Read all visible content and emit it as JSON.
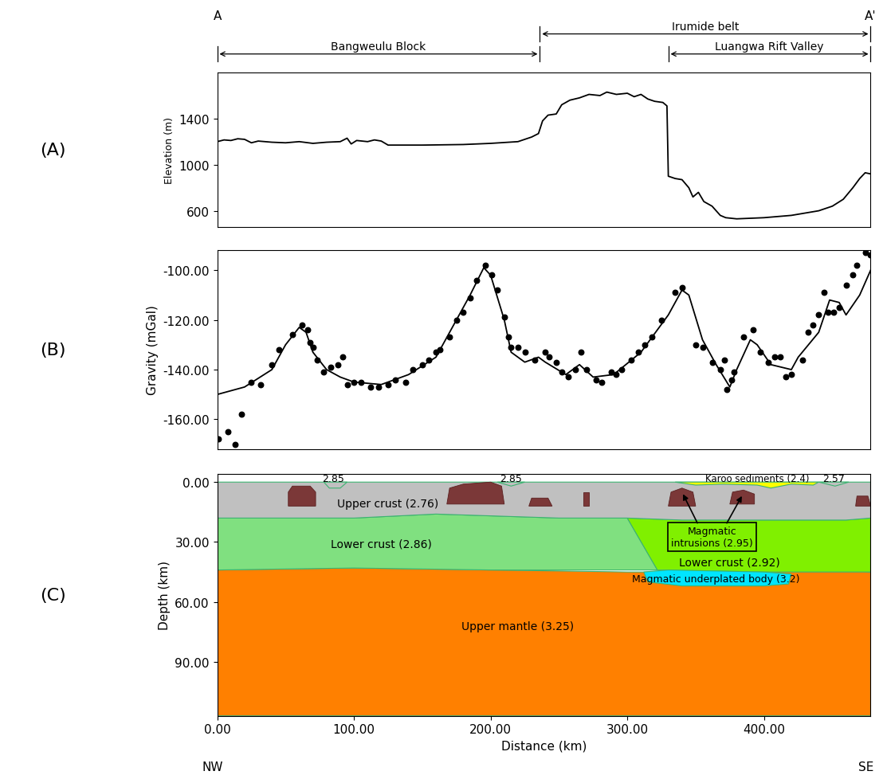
{
  "header": {
    "ends": [
      "A",
      "A'"
    ],
    "directions": [
      "NW",
      "SE"
    ],
    "regions": [
      {
        "label": "Bangweulu Block",
        "from": 0,
        "to": 236
      },
      {
        "label": "Irumide belt",
        "from": 236,
        "to": 478
      },
      {
        "label": "Luangwa Rift Valley",
        "from": 330,
        "to": 478
      }
    ]
  },
  "panel_labels": [
    "(A)",
    "(B)",
    "(C)"
  ],
  "chart_data": [
    {
      "type": "line",
      "ylabel": "Elevation (m)",
      "color": "#000000",
      "line_style": "solid",
      "xlim": [
        0,
        478
      ],
      "ylim": [
        460,
        1800
      ],
      "yticks": [
        600,
        1000,
        1400
      ],
      "tick_labels": "y",
      "x": [
        0,
        5,
        10,
        15,
        20,
        25,
        30,
        40,
        50,
        60,
        70,
        80,
        90,
        95,
        98,
        102,
        110,
        115,
        120,
        125,
        150,
        180,
        200,
        220,
        230,
        235,
        238,
        242,
        248,
        252,
        258,
        265,
        272,
        280,
        285,
        292,
        300,
        305,
        310,
        315,
        320,
        326,
        329,
        330,
        335,
        340,
        345,
        348,
        352,
        356,
        362,
        368,
        372,
        380,
        400,
        420,
        440,
        450,
        458,
        465,
        470,
        474,
        478
      ],
      "values": [
        1200,
        1215,
        1210,
        1225,
        1220,
        1190,
        1205,
        1195,
        1190,
        1200,
        1185,
        1195,
        1200,
        1230,
        1180,
        1210,
        1200,
        1215,
        1205,
        1170,
        1170,
        1175,
        1185,
        1200,
        1240,
        1270,
        1380,
        1430,
        1440,
        1520,
        1560,
        1580,
        1610,
        1600,
        1630,
        1610,
        1620,
        1590,
        1610,
        1570,
        1550,
        1540,
        1510,
        900,
        880,
        870,
        800,
        720,
        760,
        680,
        640,
        560,
        540,
        530,
        540,
        560,
        600,
        640,
        700,
        800,
        880,
        930,
        920
      ]
    },
    {
      "type": "scatter",
      "ylabel": "Gravity (mGal)",
      "xlim": [
        0,
        478
      ],
      "ylim": [
        -172,
        -92
      ],
      "yticks": [
        {
          "value": -100,
          "label": "-100.00"
        },
        {
          "value": -120,
          "label": "-120.00"
        },
        {
          "value": -140,
          "label": "-140.00"
        },
        {
          "value": -160,
          "label": "-160.00"
        }
      ],
      "tick_labels": "y",
      "series": [
        {
          "type": "scatter",
          "color": "#000000",
          "marker": "o",
          "x": [
            1,
            8,
            13,
            18,
            25,
            32,
            40,
            45,
            55,
            62,
            66,
            68,
            70,
            73,
            78,
            83,
            88,
            92,
            95,
            100,
            105,
            112,
            118,
            125,
            130,
            138,
            143,
            150,
            155,
            160,
            163,
            170,
            175,
            180,
            185,
            190,
            196,
            201,
            205,
            210,
            213,
            215,
            220,
            225,
            232,
            240,
            243,
            248,
            252,
            257,
            262,
            266,
            270,
            277,
            281,
            288,
            292,
            296,
            303,
            308,
            313,
            318,
            325,
            335,
            340,
            350,
            355,
            362,
            368,
            371,
            373,
            376,
            378,
            385,
            392,
            397,
            403,
            408,
            412,
            416,
            420,
            428,
            432,
            436,
            440,
            444,
            447,
            451,
            455,
            460,
            465,
            468,
            474,
            478
          ],
          "values": [
            -168,
            -165,
            -170,
            -158,
            -145,
            -146,
            -138,
            -132,
            -126,
            -122,
            -124,
            -129,
            -131,
            -136,
            -141,
            -139,
            -138,
            -135,
            -146,
            -145,
            -145,
            -147,
            -147,
            -146,
            -144,
            -145,
            -140,
            -138,
            -136,
            -133,
            -132,
            -127,
            -120,
            -117,
            -111,
            -104,
            -98,
            -102,
            -108,
            -119,
            -127,
            -131,
            -131,
            -133,
            -136,
            -133,
            -135,
            -137,
            -141,
            -143,
            -140,
            -133,
            -140,
            -144,
            -145,
            -141,
            -142,
            -140,
            -136,
            -133,
            -130,
            -127,
            -120,
            -109,
            -107,
            -130,
            -131,
            -137,
            -140,
            -136,
            -148,
            -144,
            -141,
            -127,
            -124,
            -133,
            -137,
            -135,
            -135,
            -143,
            -142,
            -136,
            -125,
            -122,
            -118,
            -109,
            -117,
            -117,
            -115,
            -106,
            -102,
            -98,
            -93,
            -94
          ]
        },
        {
          "type": "line",
          "color": "#000000",
          "line_style": "solid",
          "x": [
            0,
            20,
            40,
            50,
            60,
            65,
            70,
            80,
            90,
            100,
            120,
            140,
            160,
            175,
            185,
            195,
            200,
            210,
            215,
            225,
            235,
            240,
            255,
            265,
            275,
            290,
            310,
            330,
            340,
            345,
            355,
            365,
            375,
            380,
            390,
            395,
            405,
            420,
            425,
            440,
            448,
            455,
            460,
            470,
            478
          ],
          "values": [
            -150,
            -147,
            -140,
            -130,
            -123,
            -125,
            -133,
            -140,
            -143,
            -145,
            -146,
            -142,
            -135,
            -120,
            -110,
            -99,
            -102,
            -120,
            -133,
            -137,
            -135,
            -137,
            -142,
            -138,
            -143,
            -142,
            -133,
            -118,
            -108,
            -110,
            -128,
            -138,
            -147,
            -140,
            -128,
            -130,
            -138,
            -140,
            -135,
            -125,
            -112,
            -113,
            -118,
            -110,
            -100
          ]
        }
      ]
    },
    {
      "type": "cross_section",
      "xlabel": "Distance (km)",
      "ylabel": "Depth (km)",
      "xlim": [
        0,
        478
      ],
      "ylim": [
        117,
        -4
      ],
      "xticks": [
        {
          "value": 0,
          "label": "0.00"
        },
        {
          "value": 100,
          "label": "100.00"
        },
        {
          "value": 200,
          "label": "200.00"
        },
        {
          "value": 300,
          "label": "300.00"
        },
        {
          "value": 400,
          "label": "400.00"
        }
      ],
      "yticks": [
        {
          "value": 0,
          "label": "0.00"
        },
        {
          "value": 30,
          "label": "30.00"
        },
        {
          "value": 60,
          "label": "60.00"
        },
        {
          "value": 90,
          "label": "90.00"
        }
      ],
      "bodies": [
        {
          "name": "Upper mantle (3.25)",
          "color": "#ff8000",
          "polygon": [
            [
              0,
              44
            ],
            [
              100,
              43
            ],
            [
              200,
              44
            ],
            [
              300,
              45
            ],
            [
              400,
              45
            ],
            [
              460,
              44
            ],
            [
              478,
              45
            ],
            [
              478,
              117
            ],
            [
              0,
              117
            ]
          ]
        },
        {
          "name": "Lower crust (2.86)",
          "color": "#80e080",
          "polygon": [
            [
              0,
              18
            ],
            [
              100,
              18
            ],
            [
              160,
              16
            ],
            [
              250,
              18
            ],
            [
              300,
              18
            ],
            [
              322,
              44
            ],
            [
              200,
              44
            ],
            [
              100,
              43
            ],
            [
              0,
              44
            ]
          ]
        },
        {
          "name": "Lower crust (2.92)",
          "color": "#80f000",
          "polygon": [
            [
              300,
              18
            ],
            [
              340,
              19
            ],
            [
              400,
              19
            ],
            [
              460,
              19
            ],
            [
              478,
              18
            ],
            [
              478,
              45
            ],
            [
              400,
              45
            ],
            [
              322,
              44
            ]
          ]
        },
        {
          "name": "Upper crust (2.76)",
          "color": "#c0c0c0",
          "polygon": [
            [
              0,
              0
            ],
            [
              478,
              0
            ],
            [
              478,
              18
            ],
            [
              460,
              19
            ],
            [
              400,
              19
            ],
            [
              340,
              19
            ],
            [
              300,
              18
            ],
            [
              250,
              18
            ],
            [
              160,
              16
            ],
            [
              100,
              18
            ],
            [
              0,
              18
            ]
          ]
        },
        {
          "name": "Magmatic underplated body (3.2)",
          "color": "#00e5ff",
          "polygon": [
            [
              312,
              45
            ],
            [
              330,
              44
            ],
            [
              400,
              45
            ],
            [
              420,
              46
            ],
            [
              418,
              51
            ],
            [
              400,
              52
            ],
            [
              340,
              52
            ],
            [
              315,
              50
            ]
          ]
        },
        {
          "name": "Karoo sediments (2.4)",
          "color": "#ffff00",
          "polygon": [
            [
              335,
              0
            ],
            [
              440,
              0
            ],
            [
              436,
              1.5
            ],
            [
              420,
              1
            ],
            [
              405,
              3
            ],
            [
              395,
              1.5
            ],
            [
              370,
              1
            ],
            [
              350,
              1.5
            ]
          ]
        },
        {
          "name": "2.85",
          "color": "#c0c0c0",
          "polygon": [
            [
              78,
              0
            ],
            [
              95,
              0
            ],
            [
              90,
              3
            ],
            [
              82,
              3
            ]
          ]
        },
        {
          "name": "2.85",
          "color": "#c0c0c0",
          "polygon": [
            [
              205,
              0
            ],
            [
              225,
              0
            ],
            [
              215,
              2
            ]
          ]
        },
        {
          "name": "2.57",
          "color": "#c0c0c0",
          "polygon": [
            [
              440,
              0
            ],
            [
              462,
              0
            ],
            [
              452,
              2
            ]
          ]
        }
      ],
      "intrusions": {
        "label": "Magmatic\nintrusions (2.95)",
        "color": "#7b3838",
        "polygons": [
          [
            [
              52,
              12
            ],
            [
              52,
              5
            ],
            [
              55,
              2
            ],
            [
              68,
              2
            ],
            [
              72,
              5
            ],
            [
              72,
              12
            ]
          ],
          [
            [
              168,
              11
            ],
            [
              170,
              3
            ],
            [
              180,
              1
            ],
            [
              200,
              0
            ],
            [
              208,
              2
            ],
            [
              210,
              11
            ]
          ],
          [
            [
              228,
              12
            ],
            [
              230,
              8
            ],
            [
              242,
              8
            ],
            [
              245,
              12
            ]
          ],
          [
            [
              268,
              12
            ],
            [
              268,
              5
            ],
            [
              272,
              5
            ],
            [
              272,
              12
            ]
          ],
          [
            [
              330,
              12
            ],
            [
              332,
              5
            ],
            [
              340,
              3
            ],
            [
              348,
              5
            ],
            [
              350,
              12
            ]
          ],
          [
            [
              375,
              11
            ],
            [
              377,
              5
            ],
            [
              385,
              4
            ],
            [
              393,
              6
            ],
            [
              393,
              11
            ]
          ],
          [
            [
              467,
              12
            ],
            [
              468,
              7
            ],
            [
              476,
              7
            ],
            [
              478,
              12
            ]
          ]
        ]
      }
    }
  ]
}
